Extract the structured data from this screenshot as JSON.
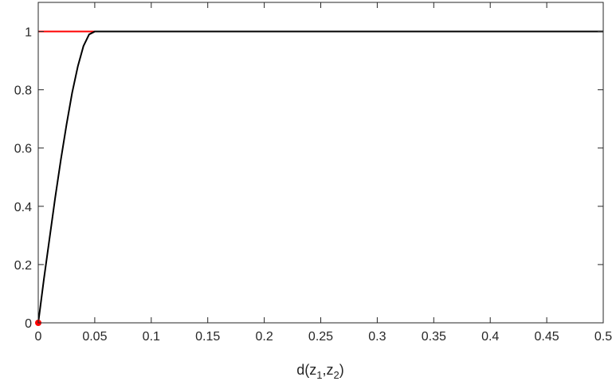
{
  "chart_data": {
    "type": "line",
    "xlabel": "d(z1,z2)",
    "xlabel_parts": {
      "main": "d(z",
      "sub1": "1",
      "sep": ",z",
      "sub2": "2",
      "close": ")"
    },
    "ylabel": "",
    "xlim": [
      0,
      0.5
    ],
    "ylim": [
      0,
      1.1
    ],
    "grid": false,
    "box": true,
    "xticks": [
      0,
      0.05,
      0.1,
      0.15,
      0.2,
      0.25,
      0.3,
      0.35,
      0.4,
      0.45,
      0.5
    ],
    "xtick_labels": [
      "0",
      "0.05",
      "0.1",
      "0.15",
      "0.2",
      "0.25",
      "0.3",
      "0.35",
      "0.4",
      "0.45",
      "0.5"
    ],
    "yticks": [
      0,
      0.2,
      0.4,
      0.6,
      0.8,
      1
    ],
    "ytick_labels": [
      "0",
      "0.2",
      "0.4",
      "0.6",
      "0.8",
      "1"
    ],
    "series": [
      {
        "color": "#ff0000",
        "x": [
          0,
          0.5
        ],
        "y": [
          1,
          1
        ]
      },
      {
        "color": "#000000",
        "x": [
          0,
          0.002,
          0.005,
          0.01,
          0.015,
          0.02,
          0.025,
          0.03,
          0.035,
          0.04,
          0.045,
          0.05,
          0.1,
          0.2,
          0.3,
          0.4,
          0.5
        ],
        "y": [
          0,
          0.06,
          0.15,
          0.29,
          0.43,
          0.56,
          0.68,
          0.79,
          0.88,
          0.95,
          0.99,
          1,
          1,
          1,
          1,
          1,
          1
        ]
      }
    ],
    "markers": [
      {
        "color": "#ff0000",
        "x": 0,
        "y": 0
      }
    ]
  }
}
